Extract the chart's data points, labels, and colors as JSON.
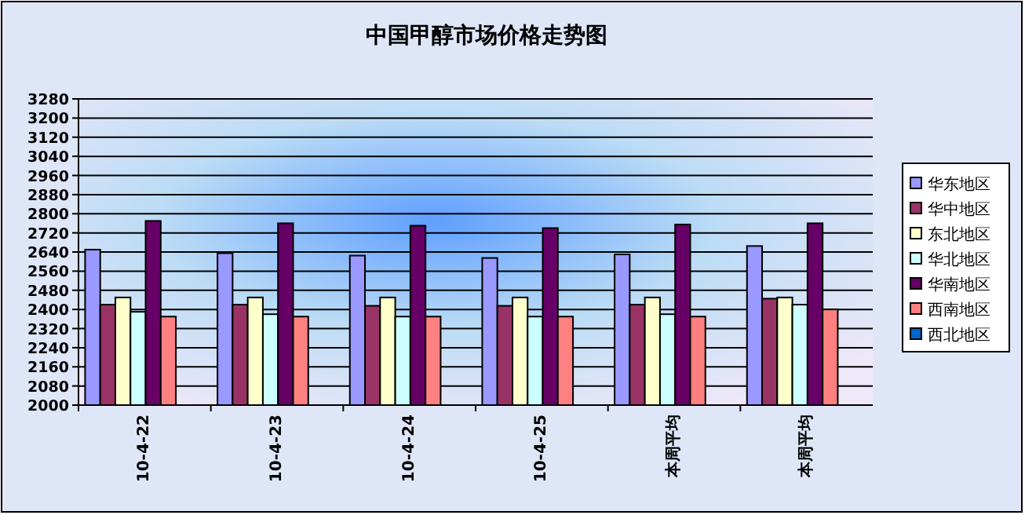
{
  "chart_data": {
    "type": "bar",
    "title": "中国甲醇市场价格走势图",
    "categories": [
      "10-4-22",
      "10-4-23",
      "10-4-24",
      "10-4-25",
      "本周平均",
      "本周平均"
    ],
    "series": [
      {
        "name": "华东地区",
        "color": "#9999ff",
        "values": [
          2650,
          2635,
          2625,
          2615,
          2630,
          2665
        ]
      },
      {
        "name": "华中地区",
        "color": "#993366",
        "values": [
          2420,
          2420,
          2415,
          2415,
          2420,
          2445
        ]
      },
      {
        "name": "东北地区",
        "color": "#ffffcc",
        "values": [
          2450,
          2450,
          2450,
          2450,
          2450,
          2450
        ]
      },
      {
        "name": "华北地区",
        "color": "#ccffff",
        "values": [
          2390,
          2380,
          2370,
          2370,
          2380,
          2420
        ]
      },
      {
        "name": "华南地区",
        "color": "#660066",
        "values": [
          2770,
          2760,
          2750,
          2740,
          2755,
          2760
        ]
      },
      {
        "name": "西南地区",
        "color": "#ff8080",
        "values": [
          2370,
          2370,
          2370,
          2370,
          2370,
          2400
        ]
      },
      {
        "name": "西北地区",
        "color": "#0066cc",
        "values": [
          null,
          null,
          null,
          null,
          null,
          null
        ]
      }
    ],
    "ylim": [
      2000,
      3280
    ],
    "yticks": [
      2000,
      2080,
      2160,
      2240,
      2320,
      2400,
      2480,
      2560,
      2640,
      2720,
      2800,
      2880,
      2960,
      3040,
      3120,
      3200,
      3280
    ],
    "grid": "y",
    "legend": "right"
  }
}
